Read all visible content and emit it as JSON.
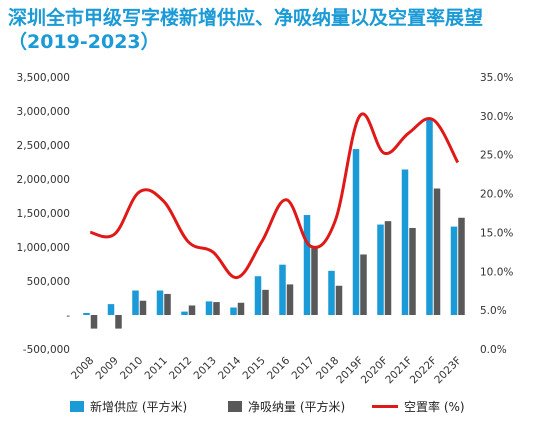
{
  "chart_data": {
    "type": "bar",
    "title": "深圳全市甲级写字楼新增供应、净吸纳量以及空置率展望（2019-2023）",
    "categories": [
      "2008",
      "2009",
      "2010",
      "2011",
      "2012",
      "2013",
      "2014",
      "2015",
      "2016",
      "2017",
      "2018",
      "2019F",
      "2020F",
      "2021F",
      "2022F",
      "2023F"
    ],
    "series": [
      {
        "name": "新增供应 (平方米)",
        "type": "bar",
        "axis": "left",
        "color": "#1a9ad6",
        "values": [
          30000,
          160000,
          360000,
          360000,
          50000,
          200000,
          110000,
          570000,
          740000,
          1470000,
          650000,
          2440000,
          1330000,
          2140000,
          2880000,
          1300000
        ]
      },
      {
        "name": "净吸纳量 (平方米)",
        "type": "bar",
        "axis": "left",
        "color": "#595959",
        "values": [
          -200000,
          -200000,
          210000,
          310000,
          140000,
          190000,
          180000,
          370000,
          450000,
          1010000,
          430000,
          890000,
          1380000,
          1280000,
          1860000,
          1430000
        ]
      },
      {
        "name": "空置率 (%)",
        "type": "line",
        "axis": "right",
        "color": "#e01818",
        "values": [
          15.0,
          14.8,
          20.2,
          19.0,
          13.8,
          12.5,
          9.2,
          13.8,
          19.2,
          13.2,
          16.5,
          30.0,
          25.2,
          27.8,
          29.5,
          24.0
        ]
      }
    ],
    "y_left": {
      "min": -500000,
      "max": 3500000,
      "step": 500000,
      "tick_labels": [
        "-500,000",
        "-",
        "500,000",
        "1,000,000",
        "1,500,000",
        "2,000,000",
        "2,500,000",
        "3,000,000",
        "3,500,000"
      ]
    },
    "y_right": {
      "min": 0,
      "max": 35,
      "step": 5,
      "tick_labels": [
        "0.0%",
        "5.0%",
        "10.0%",
        "15.0%",
        "20.0%",
        "25.0%",
        "30.0%",
        "35.0%"
      ]
    },
    "grid": false,
    "legend_position": "bottom"
  },
  "colors": {
    "title": "#1a9ad6",
    "supply": "#1a9ad6",
    "absorption": "#595959",
    "vacancy": "#e01818"
  }
}
